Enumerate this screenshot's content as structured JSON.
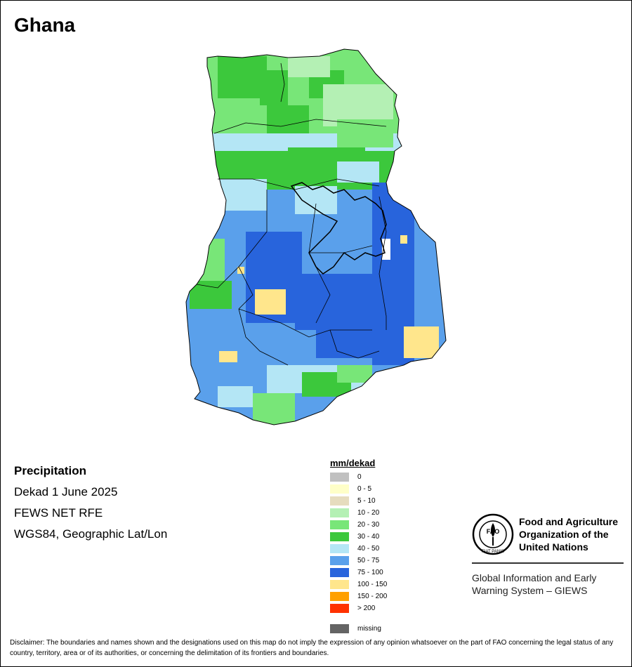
{
  "map_title": "Ghana",
  "info": {
    "variable": "Precipitation",
    "period": "Dekad 1 June 2025",
    "source": "FEWS NET RFE",
    "projection": "WGS84, Geographic Lat/Lon"
  },
  "legend": {
    "title": "mm/dekad",
    "classes": [
      {
        "label": "0",
        "color": "#c0c0c0"
      },
      {
        "label": "0 - 5",
        "color": "#ffffc8"
      },
      {
        "label": "5 - 10",
        "color": "#e6dcbe"
      },
      {
        "label": "10 - 20",
        "color": "#b4f0b4"
      },
      {
        "label": "20 - 30",
        "color": "#78e678"
      },
      {
        "label": "30 - 40",
        "color": "#3cc83c"
      },
      {
        "label": "40 - 50",
        "color": "#b4e6f5"
      },
      {
        "label": "50 - 75",
        "color": "#5aa0eb"
      },
      {
        "label": "75 - 100",
        "color": "#2864dc"
      },
      {
        "label": "100 - 150",
        "color": "#ffe68c"
      },
      {
        "label": "150 - 200",
        "color": "#ffa000"
      },
      {
        "label": "> 200",
        "color": "#ff3200"
      }
    ],
    "missing": {
      "label": "missing",
      "color": "#646464"
    }
  },
  "organization": {
    "name_line1": "Food and Agriculture",
    "name_line2": "Organization of the",
    "name_line3": "United Nations",
    "logo_text": "FAO",
    "logo_motto": "FIAT PANIS"
  },
  "giews": {
    "line1": "Global Information and Early",
    "line2": "Warning System – GIEWS"
  },
  "disclaimer": "Disclaimer: The boundaries and names shown and the designations used on this map do not imply the expression of any opinion whatsoever on the part of FAO concerning the legal status of any country, territory, area or of its authorities, or concerning the delimitation of its frontiers and boundaries."
}
